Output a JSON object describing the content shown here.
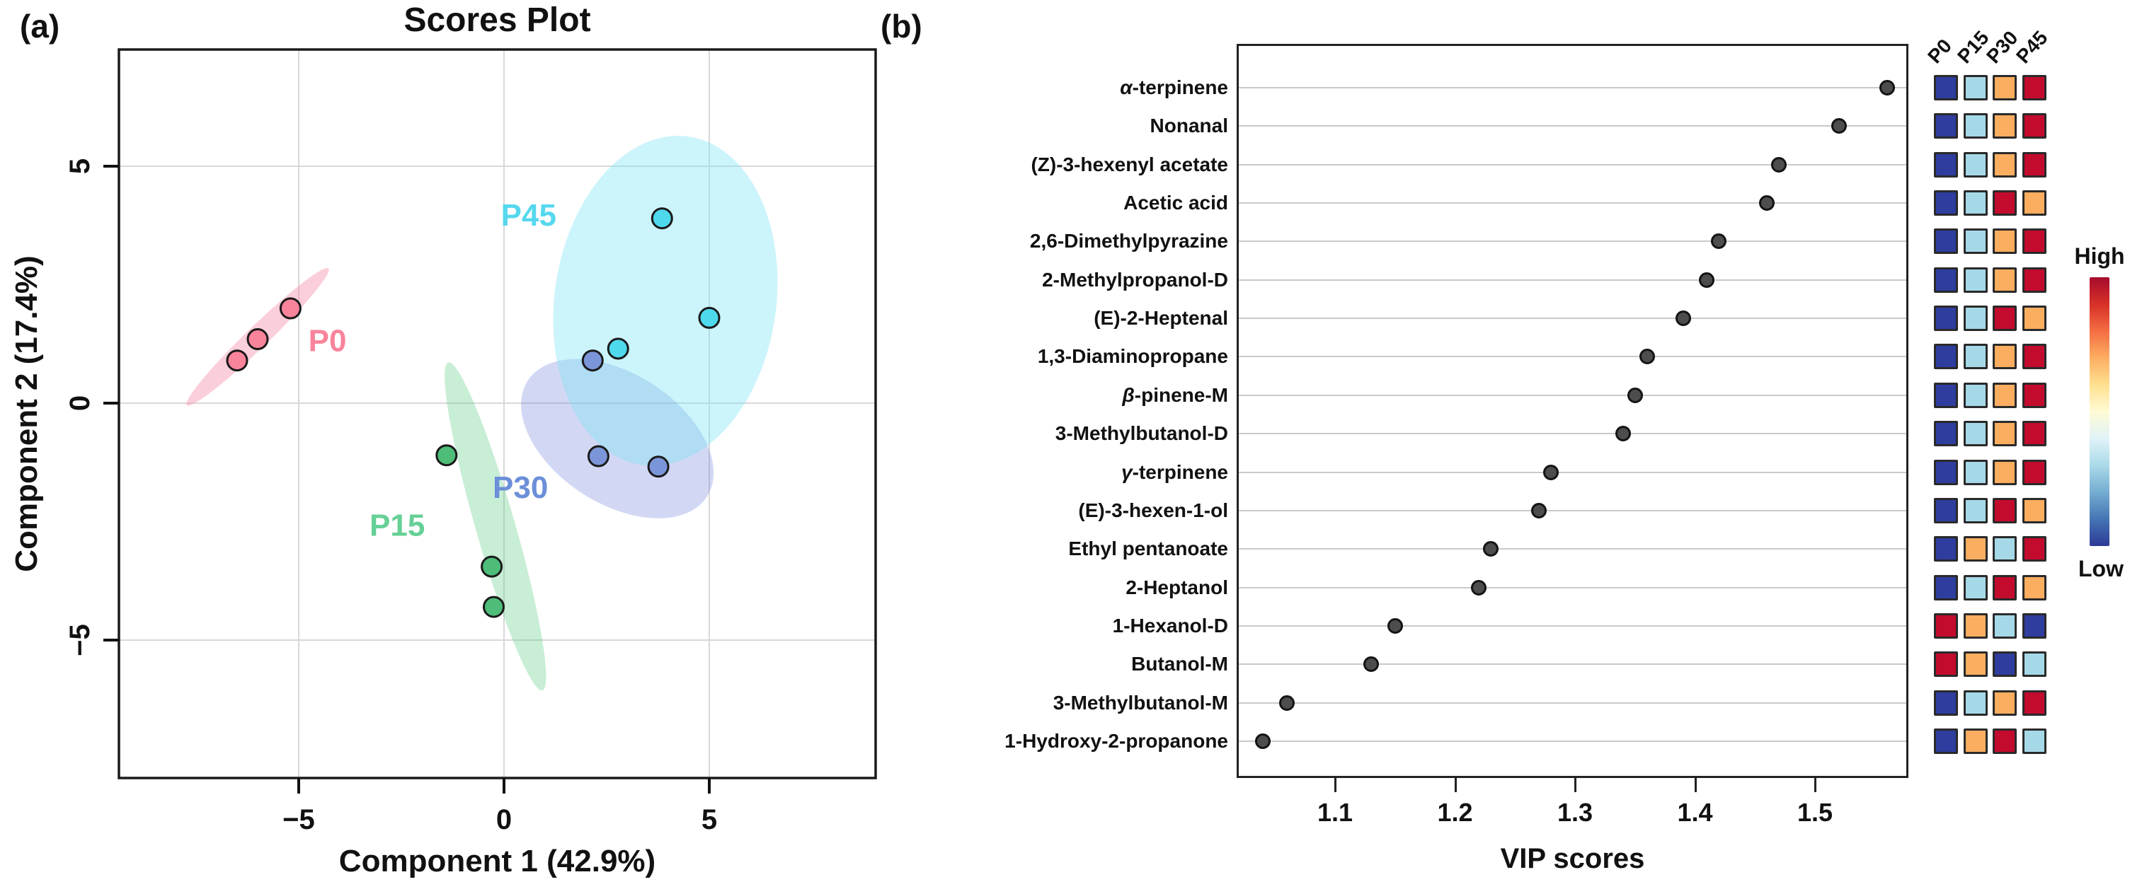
{
  "figure": {
    "panel_a_letter": "(a)",
    "panel_b_letter": "(b)"
  },
  "chart_data": [
    {
      "panel": "a",
      "type": "scatter",
      "title": "Scores Plot",
      "xlabel": "Component 1 (42.9%)",
      "ylabel": "Component 2 (17.4%)",
      "xlim": [
        -9.4,
        9.1
      ],
      "ylim": [
        -7.9,
        7.5
      ],
      "xticks": [
        -5,
        0,
        5
      ],
      "yticks": [
        5,
        0,
        -5
      ],
      "grid": true,
      "groups": [
        {
          "name": "P0",
          "dot_color": "#f8849b",
          "label_color": "#f8849b",
          "ellipse_fill": "rgba(246,140,165,0.42)",
          "label_pos": [
            -4.3,
            1.1
          ],
          "points": [
            [
              -6.5,
              0.9
            ],
            [
              -6.0,
              1.35
            ],
            [
              -5.2,
              2.0
            ]
          ],
          "ellipse": {
            "cx": -6.0,
            "cy": 1.4,
            "rx": 2.4,
            "ry": 0.23,
            "rotate": -44
          }
        },
        {
          "name": "P15",
          "dot_color": "#4dbd78",
          "label_color": "#66d096",
          "ellipse_fill": "rgba(96,207,138,0.35)",
          "label_pos": [
            -2.6,
            -2.8
          ],
          "points": [
            [
              -1.4,
              -1.1
            ],
            [
              -0.3,
              -3.45
            ],
            [
              -0.25,
              -4.3
            ]
          ],
          "ellipse": {
            "cx": -0.21,
            "cy": -2.6,
            "rx": 0.48,
            "ry": 3.6,
            "rotate": -16
          }
        },
        {
          "name": "P30",
          "dot_color": "#7b96d8",
          "label_color": "#6b8fd8",
          "ellipse_fill": "rgba(115,135,220,0.32)",
          "label_pos": [
            0.4,
            -2.0
          ],
          "points": [
            [
              2.16,
              0.9
            ],
            [
              2.3,
              -1.12
            ],
            [
              3.76,
              -1.34
            ]
          ],
          "ellipse": {
            "cx": 2.76,
            "cy": -0.75,
            "rx": 2.6,
            "ry": 1.37,
            "rotate": 33
          }
        },
        {
          "name": "P45",
          "dot_color": "#4ed9ec",
          "label_color": "#55d8ee",
          "ellipse_fill": "rgba(120,225,245,0.38)",
          "label_pos": [
            0.6,
            3.75
          ],
          "points": [
            [
              3.85,
              3.9
            ],
            [
              5.0,
              1.8
            ],
            [
              2.78,
              1.15
            ]
          ],
          "ellipse": {
            "cx": 3.93,
            "cy": 2.16,
            "rx": 2.7,
            "ry": 3.5,
            "rotate": 8
          }
        }
      ]
    },
    {
      "panel": "b",
      "type": "dot-heatmap",
      "xlabel": "VIP scores",
      "xticks": [
        1.1,
        1.2,
        1.3,
        1.4,
        1.5
      ],
      "xlim": [
        1.018,
        1.578
      ],
      "grid": true,
      "heat_columns": [
        "P0",
        "P15",
        "P30",
        "P45"
      ],
      "heat_palette": {
        "B": "#2e3d9e",
        "L": "#a6d9e8",
        "O": "#fcae60",
        "R": "#c30b2e"
      },
      "legend": {
        "high_label": "High",
        "low_label": "Low",
        "gradient": [
          "#a50b2e",
          "#d73027",
          "#f46d43",
          "#fdae61",
          "#fee090",
          "#fffbd5",
          "#e0f3f8",
          "#abd9e9",
          "#74add1",
          "#4575b4",
          "#2c3a97"
        ]
      },
      "rows": [
        {
          "compound": "α-terpinene",
          "vip": 1.56,
          "heat": [
            "B",
            "L",
            "O",
            "R"
          ]
        },
        {
          "compound": "Nonanal",
          "vip": 1.52,
          "heat": [
            "B",
            "L",
            "O",
            "R"
          ]
        },
        {
          "compound": "(Z)-3-hexenyl acetate",
          "vip": 1.47,
          "heat": [
            "B",
            "L",
            "O",
            "R"
          ]
        },
        {
          "compound": "Acetic acid",
          "vip": 1.46,
          "heat": [
            "B",
            "L",
            "R",
            "O"
          ]
        },
        {
          "compound": "2,6-Dimethylpyrazine",
          "vip": 1.42,
          "heat": [
            "B",
            "L",
            "O",
            "R"
          ]
        },
        {
          "compound": "2-Methylpropanol-D",
          "vip": 1.41,
          "heat": [
            "B",
            "L",
            "O",
            "R"
          ]
        },
        {
          "compound": "(E)-2-Heptenal",
          "vip": 1.39,
          "heat": [
            "B",
            "L",
            "R",
            "O"
          ]
        },
        {
          "compound": "1,3-Diaminopropane",
          "vip": 1.36,
          "heat": [
            "B",
            "L",
            "O",
            "R"
          ]
        },
        {
          "compound": "β-pinene-M",
          "vip": 1.35,
          "heat": [
            "B",
            "L",
            "O",
            "R"
          ]
        },
        {
          "compound": "3-Methylbutanol-D",
          "vip": 1.34,
          "heat": [
            "B",
            "L",
            "O",
            "R"
          ]
        },
        {
          "compound": "γ-terpinene",
          "vip": 1.28,
          "heat": [
            "B",
            "L",
            "O",
            "R"
          ]
        },
        {
          "compound": "(E)-3-hexen-1-ol",
          "vip": 1.27,
          "heat": [
            "B",
            "L",
            "R",
            "O"
          ]
        },
        {
          "compound": "Ethyl pentanoate",
          "vip": 1.23,
          "heat": [
            "B",
            "O",
            "L",
            "R"
          ]
        },
        {
          "compound": "2-Heptanol",
          "vip": 1.22,
          "heat": [
            "B",
            "L",
            "R",
            "O"
          ]
        },
        {
          "compound": "1-Hexanol-D",
          "vip": 1.15,
          "heat": [
            "R",
            "O",
            "L",
            "B"
          ]
        },
        {
          "compound": "Butanol-M",
          "vip": 1.13,
          "heat": [
            "R",
            "O",
            "B",
            "L"
          ]
        },
        {
          "compound": "3-Methylbutanol-M",
          "vip": 1.06,
          "heat": [
            "B",
            "L",
            "O",
            "R"
          ]
        },
        {
          "compound": "1-Hydroxy-2-propanone",
          "vip": 1.04,
          "heat": [
            "B",
            "O",
            "R",
            "L"
          ]
        }
      ]
    }
  ]
}
